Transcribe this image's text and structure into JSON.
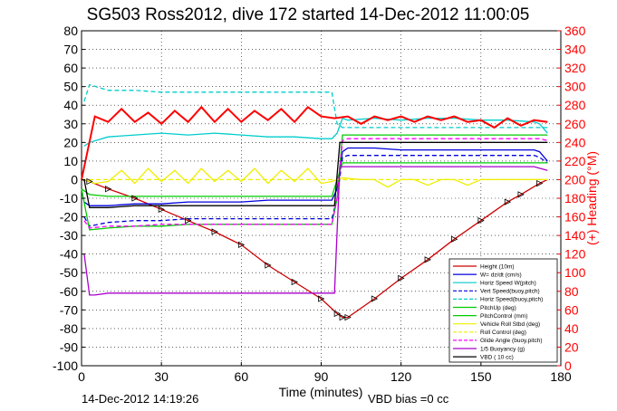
{
  "chart_data": {
    "type": "line",
    "title": "SG503 Ross2012, dive 172 started 14-Dec-2012 11:00:05",
    "xlabel": "Time (minutes)",
    "ylabel": "",
    "ylabel_right": "(+) Heading (°M)",
    "xlim": [
      0,
      180
    ],
    "ylim": [
      -100,
      80
    ],
    "ylim_right": [
      0,
      360
    ],
    "xticks": [
      "0",
      "30",
      "60",
      "90",
      "120",
      "150",
      "180"
    ],
    "yticks": [
      "80",
      "70",
      "60",
      "50",
      "40",
      "30",
      "20",
      "10",
      "0",
      "-10",
      "-20",
      "-30",
      "-40",
      "-50",
      "-60",
      "-70",
      "-80",
      "-90",
      "-100"
    ],
    "yticks_right": [
      "360",
      "340",
      "320",
      "300",
      "280",
      "260",
      "240",
      "220",
      "200",
      "180",
      "160",
      "140",
      "120",
      "100",
      "80",
      "60",
      "40",
      "20",
      "0"
    ],
    "grid": true,
    "legend_position": "bottom-right",
    "footer_left": "14-Dec-2012 14:19:26",
    "footer_right": "VBD bias =0 cc",
    "colors": {
      "heading": "#ff0000",
      "depth": "#000000",
      "depth_markers": "#cc0000"
    },
    "series": [
      {
        "name": "Height (10m)",
        "color": "#cc0000",
        "style": "solid",
        "x": [
          0,
          3,
          10,
          20,
          30,
          40,
          50,
          60,
          70,
          80,
          90,
          96,
          98,
          100,
          110,
          120,
          130,
          140,
          150,
          160,
          165,
          172,
          175
        ],
        "y": [
          0,
          -1,
          -5,
          -10,
          -16,
          -22,
          -28,
          -35,
          -46,
          -55,
          -64,
          -72,
          -74,
          -74,
          -64,
          -53,
          -43,
          -32,
          -22,
          -12,
          -8,
          -2,
          0
        ]
      },
      {
        "name": "W= dz/dt (cm/s)",
        "color": "#0000dd",
        "style": "solid",
        "x": [
          1,
          3,
          10,
          20,
          30,
          40,
          50,
          60,
          70,
          80,
          90,
          94,
          96,
          98,
          100,
          110,
          120,
          130,
          140,
          150,
          160,
          170,
          172,
          175
        ],
        "y": [
          -12,
          -14,
          -14,
          -13,
          -13,
          -12,
          -12,
          -12,
          -11,
          -11,
          -11,
          -11,
          -5,
          15,
          17,
          17,
          16,
          16,
          16,
          16,
          16,
          16,
          15,
          10
        ]
      },
      {
        "name": "Horiz Speed W(pitch)",
        "color": "#00cccc",
        "style": "solid",
        "x": [
          1,
          3,
          10,
          20,
          30,
          40,
          50,
          60,
          70,
          80,
          90,
          94,
          96,
          98,
          100,
          110,
          120,
          130,
          140,
          150,
          160,
          170,
          172,
          175
        ],
        "y": [
          18,
          20,
          23,
          24,
          25,
          24,
          25,
          24,
          23,
          23,
          22,
          22,
          25,
          33,
          32,
          33,
          32,
          33,
          33,
          32,
          32,
          31,
          30,
          25
        ]
      },
      {
        "name": "Vert Speed(buoy,pitch)",
        "color": "#0000dd",
        "style": "dashed",
        "x": [
          1,
          3,
          10,
          20,
          30,
          40,
          50,
          60,
          70,
          80,
          90,
          94,
          96,
          98,
          100,
          110,
          120,
          130,
          140,
          150,
          160,
          170,
          172,
          175
        ],
        "y": [
          -20,
          -25,
          -23,
          -22,
          -22,
          -21,
          -21,
          -21,
          -21,
          -21,
          -21,
          -21,
          -10,
          12,
          13,
          13,
          13,
          13,
          13,
          13,
          13,
          13,
          12,
          9
        ]
      },
      {
        "name": "Horiz Speed(buoy,pitch)",
        "color": "#00cccc",
        "style": "dashed",
        "x": [
          1,
          3,
          10,
          20,
          30,
          40,
          50,
          60,
          70,
          80,
          90,
          94,
          96,
          98,
          100,
          110,
          120,
          130,
          140,
          150,
          160,
          170,
          172,
          175
        ],
        "y": [
          42,
          51,
          48,
          48,
          47,
          47,
          47,
          47,
          47,
          47,
          47,
          47,
          30,
          28,
          28,
          28,
          28,
          28,
          28,
          28,
          28,
          28,
          28,
          28
        ]
      },
      {
        "name": "PitchUp (deg)",
        "color": "#00cc00",
        "style": "solid",
        "x": [
          0,
          3,
          10,
          20,
          30,
          40,
          50,
          60,
          70,
          80,
          90,
          94,
          96,
          98,
          100,
          110,
          120,
          130,
          140,
          150,
          160,
          170,
          172,
          175
        ],
        "y": [
          -5,
          -27,
          -26,
          -25,
          -25,
          -24,
          -24,
          -24,
          -24,
          -24,
          -24,
          -24,
          -10,
          24,
          24,
          24,
          24,
          24,
          24,
          24,
          24,
          24,
          24,
          24
        ]
      },
      {
        "name": "PitchControl (mm)",
        "color": "#00cc00",
        "style": "solid",
        "x": [
          0,
          3,
          10,
          20,
          30,
          40,
          50,
          60,
          70,
          80,
          90,
          94,
          96,
          98,
          100,
          110,
          120,
          130,
          140,
          150,
          160,
          170,
          175
        ],
        "y": [
          -5,
          -8,
          -9,
          -9,
          -9,
          -9,
          -9,
          -9,
          -9,
          -9,
          -9,
          -9,
          0,
          9,
          9,
          9,
          9,
          9,
          9,
          9,
          9,
          9,
          9
        ]
      },
      {
        "name": "Vehicle Roll Stbd (deg)",
        "color": "#eeee00",
        "style": "solid",
        "x": [
          1,
          5,
          10,
          15,
          20,
          25,
          30,
          35,
          40,
          45,
          50,
          55,
          60,
          65,
          70,
          75,
          80,
          85,
          90,
          94,
          96,
          98,
          105,
          110,
          115,
          120,
          125,
          130,
          135,
          140,
          145,
          150,
          155,
          160,
          165,
          170,
          175
        ],
        "y": [
          0,
          -2,
          -1,
          5,
          -2,
          6,
          -1,
          5,
          -2,
          6,
          -1,
          5,
          -1,
          6,
          -2,
          5,
          -1,
          6,
          -2,
          -1,
          0,
          1,
          0,
          0,
          -4,
          0,
          0,
          -3,
          0,
          0,
          -3,
          0,
          0,
          0,
          0,
          0,
          0
        ]
      },
      {
        "name": "Roll Control (deg)",
        "color": "#eeee00",
        "style": "dashed",
        "x": [
          0,
          10,
          20,
          30,
          40,
          50,
          60,
          70,
          80,
          90,
          95,
          98,
          110,
          120,
          130,
          140,
          150,
          160,
          170,
          175
        ],
        "y": [
          0,
          0,
          0,
          0,
          0,
          0,
          0,
          0,
          0,
          0,
          0,
          0,
          0,
          0,
          0,
          0,
          0,
          0,
          0,
          0
        ]
      },
      {
        "name": "Glide Angle (buoy,pitch)",
        "color": "#ff00ff",
        "style": "dashed",
        "x": [
          1,
          3,
          10,
          20,
          30,
          40,
          50,
          60,
          70,
          80,
          90,
          94,
          96,
          98,
          100,
          110,
          120,
          130,
          140,
          150,
          160,
          170,
          172,
          175
        ],
        "y": [
          -22,
          -26,
          -25,
          -25,
          -24,
          -24,
          -24,
          -24,
          -24,
          -24,
          -24,
          -24,
          -10,
          21,
          22,
          22,
          22,
          22,
          22,
          22,
          22,
          22,
          22,
          21
        ]
      },
      {
        "name": "1/5 Buoyancy (g)",
        "color": "#aa00cc",
        "style": "solid",
        "x": [
          1,
          3,
          5,
          10,
          20,
          30,
          40,
          50,
          60,
          70,
          80,
          90,
          95,
          97,
          99,
          110,
          120,
          130,
          140,
          150,
          160,
          170,
          175
        ],
        "y": [
          -40,
          -62,
          -62,
          -61,
          -61,
          -61,
          -61,
          -61,
          -61,
          -61,
          -61,
          -61,
          -61,
          7,
          7,
          7,
          7,
          7,
          7,
          7,
          7,
          7,
          5
        ]
      },
      {
        "name": "VBD ( 10 cc)",
        "color": "#000000",
        "style": "solid",
        "x": [
          1,
          3,
          10,
          20,
          30,
          40,
          50,
          60,
          70,
          80,
          90,
          95,
          97,
          99,
          110,
          120,
          130,
          140,
          150,
          160,
          170,
          175
        ],
        "y": [
          0,
          -15,
          -15,
          -14,
          -14,
          -14,
          -14,
          -14,
          -14,
          -14,
          -14,
          -14,
          20,
          20,
          20,
          20,
          20,
          20,
          20,
          20,
          20,
          20
        ]
      }
    ],
    "heading_series": {
      "axis": "right",
      "color": "#ff0000",
      "x": [
        0,
        5,
        10,
        15,
        20,
        25,
        30,
        35,
        40,
        45,
        50,
        55,
        60,
        65,
        70,
        75,
        80,
        85,
        90,
        95,
        100,
        105,
        110,
        115,
        120,
        125,
        130,
        135,
        140,
        145,
        150,
        155,
        160,
        165,
        170,
        175
      ],
      "y": [
        200,
        268,
        262,
        276,
        262,
        272,
        260,
        274,
        262,
        278,
        262,
        276,
        262,
        274,
        264,
        276,
        262,
        278,
        268,
        266,
        268,
        260,
        268,
        264,
        268,
        262,
        268,
        264,
        268,
        262,
        264,
        256,
        266,
        258,
        264,
        262
      ]
    }
  }
}
